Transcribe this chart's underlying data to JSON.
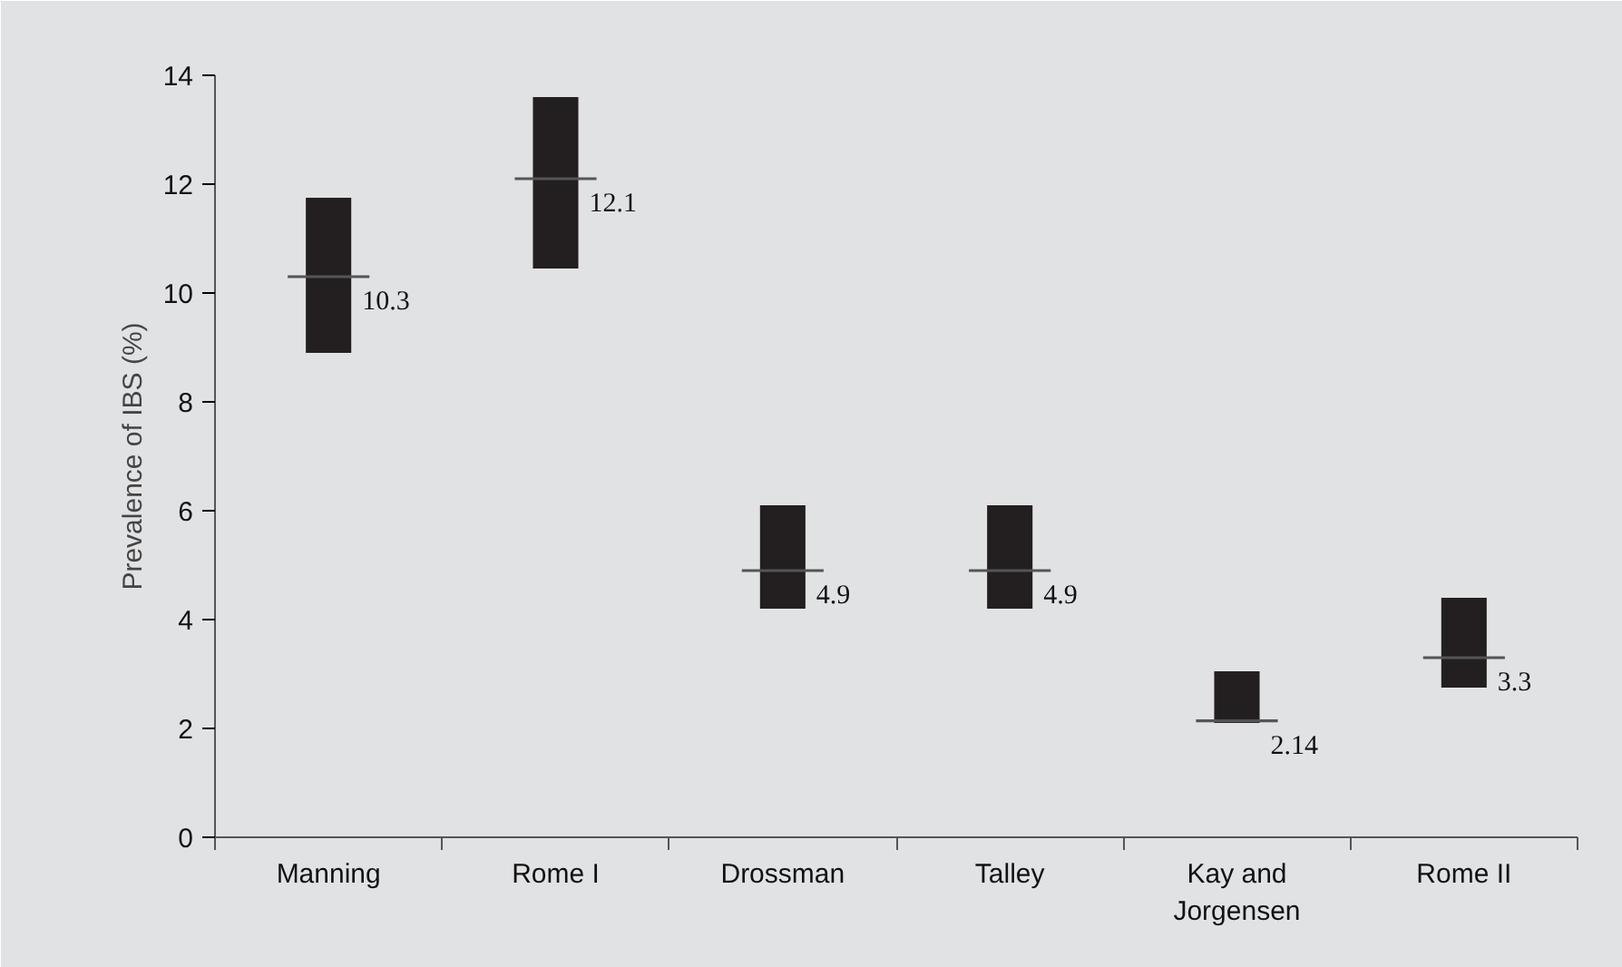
{
  "chart_data": {
    "type": "box",
    "categories": [
      "Manning",
      "Rome I",
      "Drossman",
      "Talley",
      "Kay and\nJorgensen",
      "Rome II"
    ],
    "ylabel": "Prevalence of IBS (%)",
    "series": [
      {
        "color": "#231f20",
        "boxes": [
          {
            "low": 8.9,
            "q1": 8.9,
            "median": 10.3,
            "q3": 11.75,
            "high": 11.75
          },
          {
            "low": 10.45,
            "q1": 10.45,
            "median": 12.1,
            "q3": 13.6,
            "high": 13.6
          },
          {
            "low": 4.2,
            "q1": 4.2,
            "median": 4.9,
            "q3": 6.1,
            "high": 6.1
          },
          {
            "low": 4.2,
            "q1": 4.2,
            "median": 4.9,
            "q3": 6.1,
            "high": 6.1
          },
          {
            "low": 2.1,
            "q1": 2.1,
            "median": 2.14,
            "q3": 3.05,
            "high": 3.05
          },
          {
            "low": 2.75,
            "q1": 2.75,
            "median": 3.3,
            "q3": 4.4,
            "high": 4.4
          }
        ],
        "value_labels": [
          "10.3",
          "12.1",
          "4.9",
          "4.9",
          "2.14",
          "3.3"
        ]
      }
    ],
    "ylim": [
      0,
      14
    ],
    "yticks": [
      0,
      2,
      4,
      6,
      8,
      10,
      12,
      14
    ]
  }
}
